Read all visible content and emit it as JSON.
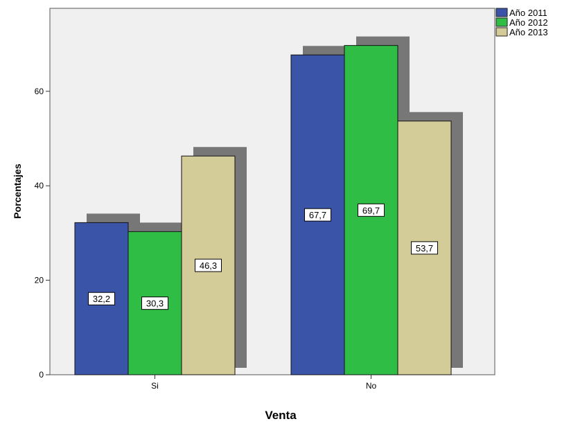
{
  "chart_data": {
    "type": "bar",
    "categories": [
      "Si",
      "No"
    ],
    "series": [
      {
        "name": "Año 2011",
        "values": [
          32.2,
          67.7
        ],
        "labels": [
          "32,2",
          "67,7"
        ]
      },
      {
        "name": "Año 2012",
        "values": [
          30.3,
          69.7
        ],
        "labels": [
          "30,3",
          "69,7"
        ]
      },
      {
        "name": "Año 2013",
        "values": [
          46.3,
          53.7
        ],
        "labels": [
          "46,3",
          "53,7"
        ]
      }
    ],
    "xlabel": "Venta",
    "ylabel": "Porcentajes",
    "ylim": [
      0,
      78
    ],
    "yticks": [
      0,
      20,
      40,
      60
    ],
    "colors": [
      "#3a55a8",
      "#2fbd45",
      "#d4cc98"
    ],
    "shadow_color": "#777777",
    "plot_background": "#f0f0f0",
    "grid": false,
    "legend_position": "top-right",
    "style": "3d-shadow"
  }
}
